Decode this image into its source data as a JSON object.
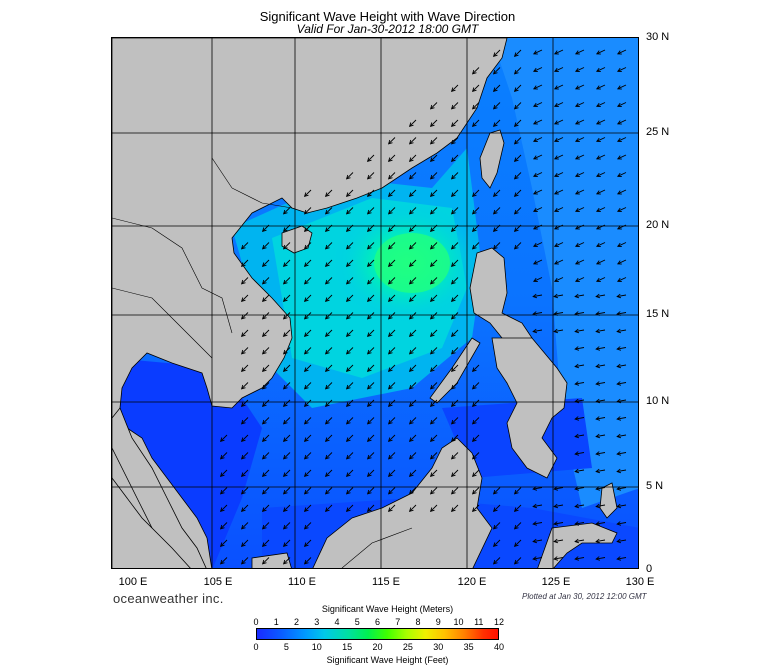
{
  "map": {
    "title": "Significant Wave Height with Wave Direction",
    "subtitle": "Valid For Jan-30-2012 18:00 GMT",
    "lat_labels": [
      "30 N",
      "25 N",
      "20 N",
      "15 N",
      "10 N",
      "5 N",
      "0"
    ],
    "lon_labels": [
      "100 E",
      "105 E",
      "110 E",
      "115 E",
      "120 E",
      "125 E",
      "130 E"
    ],
    "region": "South China Sea",
    "extent": {
      "lon_min": 99,
      "lon_max": 130,
      "lat_min": 0,
      "lat_max": 30
    },
    "colors": {
      "land": "#c0c0c0",
      "low": "#0a44ff",
      "mid": "#00c8ff",
      "high": "#00ff80",
      "arrow": "#000000"
    }
  },
  "footer": {
    "brand": "oceanweather inc.",
    "plotted": "Plotted at Jan 30, 2012 12:00 GMT"
  },
  "colorbar": {
    "meters_title": "Significant Wave Height (Meters)",
    "feet_title": "Significant Wave Height (Feet)",
    "meters_ticks": [
      "0",
      "1",
      "2",
      "3",
      "4",
      "5",
      "6",
      "7",
      "8",
      "9",
      "10",
      "11",
      "12"
    ],
    "feet_ticks": [
      "0",
      "5",
      "10",
      "15",
      "20",
      "25",
      "30",
      "35",
      "40"
    ]
  }
}
